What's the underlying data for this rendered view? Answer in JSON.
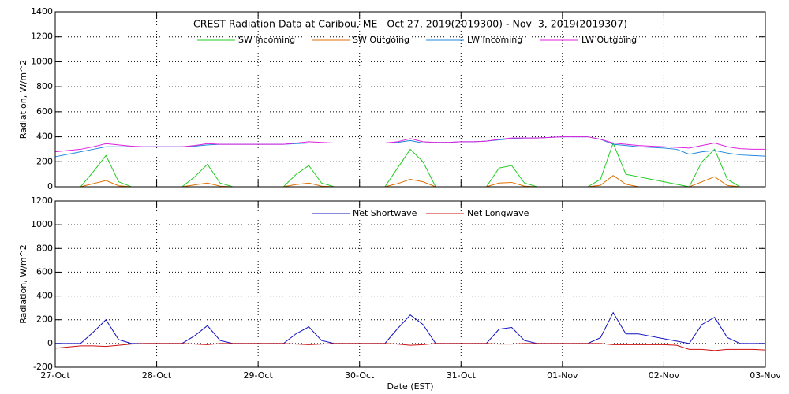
{
  "chart_data": [
    {
      "type": "line",
      "title": "CREST Radiation Data at Caribou, ME   Oct 27, 2019(2019300) - Nov  3, 2019(2019307)",
      "y_label": "Radiation, W/m^2",
      "legend": "upper center",
      "grid": true,
      "x": [
        0,
        0.125,
        0.25,
        0.375,
        0.5,
        0.625,
        0.75,
        0.875,
        1,
        1.125,
        1.25,
        1.375,
        1.5,
        1.625,
        1.75,
        1.875,
        2,
        2.125,
        2.25,
        2.375,
        2.5,
        2.625,
        2.75,
        2.875,
        3,
        3.125,
        3.25,
        3.375,
        3.5,
        3.625,
        3.75,
        3.875,
        4,
        4.125,
        4.25,
        4.375,
        4.5,
        4.625,
        4.75,
        4.875,
        5,
        5.125,
        5.25,
        5.375,
        5.5,
        5.625,
        5.75,
        5.875,
        6,
        6.125,
        6.25,
        6.375,
        6.5,
        6.625,
        6.75,
        6.875,
        7
      ],
      "xlim": [
        0,
        7
      ],
      "xticks": [
        0,
        1,
        2,
        3,
        4,
        5,
        6,
        7
      ],
      "ylim": [
        0,
        1400
      ],
      "yticks": [
        0,
        200,
        400,
        600,
        800,
        1000,
        1200,
        1400
      ],
      "series": [
        {
          "name": "SW Incoming",
          "color": "#22cc22",
          "values": [
            0,
            0,
            0,
            120,
            250,
            40,
            0,
            0,
            0,
            0,
            0,
            80,
            180,
            30,
            0,
            0,
            0,
            0,
            0,
            100,
            170,
            30,
            0,
            0,
            0,
            0,
            0,
            150,
            300,
            200,
            0,
            0,
            0,
            0,
            0,
            150,
            170,
            30,
            0,
            0,
            0,
            0,
            0,
            60,
            350,
            100,
            80,
            60,
            40,
            20,
            0,
            200,
            300,
            60,
            0,
            0,
            0
          ]
        },
        {
          "name": "SW Outgoing",
          "color": "#e07000",
          "values": [
            0,
            0,
            0,
            25,
            50,
            8,
            0,
            0,
            0,
            0,
            0,
            15,
            30,
            5,
            0,
            0,
            0,
            0,
            0,
            18,
            30,
            5,
            0,
            0,
            0,
            0,
            0,
            25,
            60,
            40,
            0,
            0,
            0,
            0,
            0,
            30,
            35,
            5,
            0,
            0,
            0,
            0,
            0,
            12,
            90,
            20,
            0,
            0,
            0,
            0,
            0,
            40,
            80,
            10,
            0,
            0,
            0
          ]
        },
        {
          "name": "LW Incoming",
          "color": "#2088e0",
          "values": [
            240,
            260,
            280,
            300,
            320,
            320,
            320,
            320,
            320,
            320,
            320,
            325,
            335,
            340,
            340,
            340,
            340,
            340,
            340,
            345,
            350,
            350,
            350,
            350,
            350,
            350,
            350,
            355,
            370,
            350,
            355,
            355,
            360,
            360,
            365,
            375,
            385,
            390,
            390,
            395,
            400,
            400,
            400,
            380,
            340,
            330,
            320,
            315,
            310,
            300,
            260,
            280,
            290,
            270,
            255,
            250,
            245
          ]
        },
        {
          "name": "LW Outgoing",
          "color": "#e020e0",
          "values": [
            280,
            290,
            300,
            320,
            345,
            335,
            325,
            320,
            320,
            320,
            320,
            330,
            345,
            340,
            340,
            340,
            340,
            340,
            340,
            350,
            360,
            355,
            350,
            350,
            350,
            350,
            350,
            360,
            385,
            360,
            355,
            355,
            360,
            360,
            365,
            380,
            390,
            390,
            390,
            395,
            400,
            400,
            400,
            380,
            350,
            340,
            330,
            325,
            320,
            315,
            310,
            330,
            350,
            320,
            305,
            300,
            300
          ]
        }
      ]
    },
    {
      "type": "line",
      "y_label": "Radiation, W/m^2",
      "x_label": "Date (EST)",
      "legend": "upper center",
      "grid": true,
      "x": [
        0,
        0.125,
        0.25,
        0.375,
        0.5,
        0.625,
        0.75,
        0.875,
        1,
        1.125,
        1.25,
        1.375,
        1.5,
        1.625,
        1.75,
        1.875,
        2,
        2.125,
        2.25,
        2.375,
        2.5,
        2.625,
        2.75,
        2.875,
        3,
        3.125,
        3.25,
        3.375,
        3.5,
        3.625,
        3.75,
        3.875,
        4,
        4.125,
        4.25,
        4.375,
        4.5,
        4.625,
        4.75,
        4.875,
        5,
        5.125,
        5.25,
        5.375,
        5.5,
        5.625,
        5.75,
        5.875,
        6,
        6.125,
        6.25,
        6.375,
        6.5,
        6.625,
        6.75,
        6.875,
        7
      ],
      "xlim": [
        0,
        7
      ],
      "xticks": [
        {
          "value": 0,
          "label": "27-Oct"
        },
        {
          "value": 1,
          "label": "28-Oct"
        },
        {
          "value": 2,
          "label": "29-Oct"
        },
        {
          "value": 3,
          "label": "30-Oct"
        },
        {
          "value": 4,
          "label": "31-Oct"
        },
        {
          "value": 5,
          "label": "01-Nov"
        },
        {
          "value": 6,
          "label": "02-Nov"
        },
        {
          "value": 7,
          "label": "03-Nov"
        }
      ],
      "ylim": [
        -200,
        1200
      ],
      "yticks": [
        -200,
        0,
        200,
        400,
        600,
        800,
        1000,
        1200
      ],
      "series": [
        {
          "name": "Net Shortwave",
          "color": "#1010c0",
          "values": [
            0,
            0,
            0,
            95,
            200,
            32,
            0,
            0,
            0,
            0,
            0,
            65,
            150,
            25,
            0,
            0,
            0,
            0,
            0,
            82,
            140,
            25,
            0,
            0,
            0,
            0,
            0,
            125,
            240,
            160,
            0,
            0,
            0,
            0,
            0,
            120,
            135,
            25,
            0,
            0,
            0,
            0,
            0,
            48,
            260,
            80,
            80,
            60,
            40,
            20,
            0,
            160,
            220,
            50,
            0,
            0,
            0
          ]
        },
        {
          "name": "Net Longwave",
          "color": "#cc1010",
          "values": [
            -40,
            -30,
            -20,
            -20,
            -25,
            -15,
            -5,
            0,
            0,
            0,
            0,
            -5,
            -10,
            0,
            0,
            0,
            0,
            0,
            0,
            -5,
            -10,
            -5,
            0,
            0,
            0,
            0,
            0,
            -5,
            -15,
            -10,
            0,
            0,
            0,
            0,
            0,
            -5,
            -5,
            0,
            0,
            0,
            0,
            0,
            0,
            0,
            -10,
            -10,
            -10,
            -10,
            -10,
            -15,
            -50,
            -50,
            -60,
            -50,
            -50,
            -50,
            -55
          ]
        }
      ]
    }
  ]
}
